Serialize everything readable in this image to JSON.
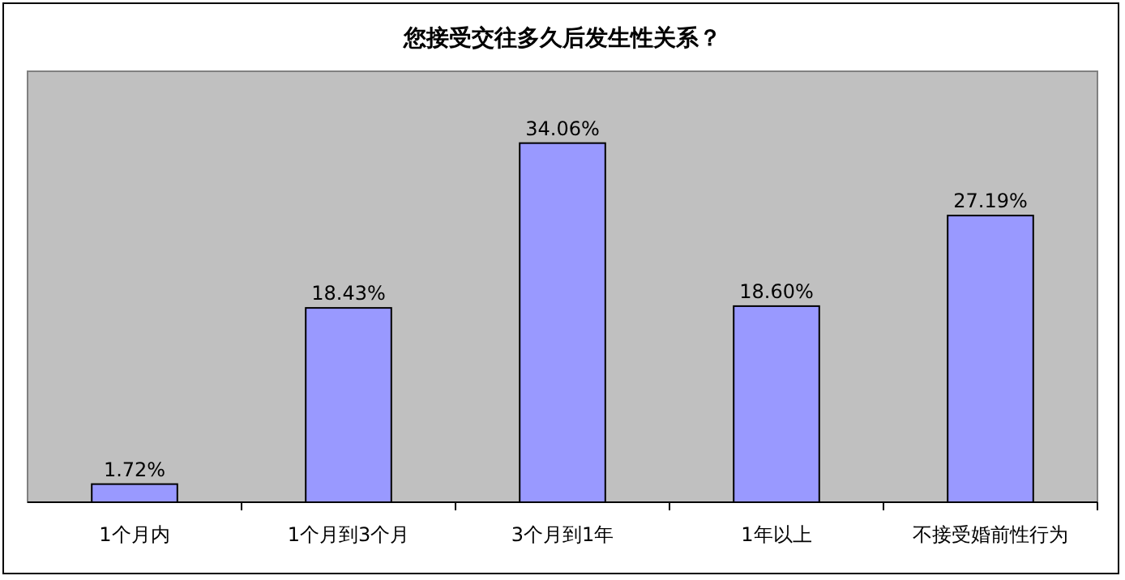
{
  "chart_data": {
    "type": "bar",
    "title": "您接受交往多久后发生性关系？",
    "categories": [
      "1个月内",
      "1个月到3个月",
      "3个月到1年",
      "1年以上",
      "不接受婚前性行为"
    ],
    "values": [
      1.72,
      18.43,
      34.06,
      18.6,
      27.19
    ],
    "value_labels": [
      "1.72%",
      "18.43%",
      "34.06%",
      "18.60%",
      "27.19%"
    ],
    "color": "#9999ff"
  }
}
